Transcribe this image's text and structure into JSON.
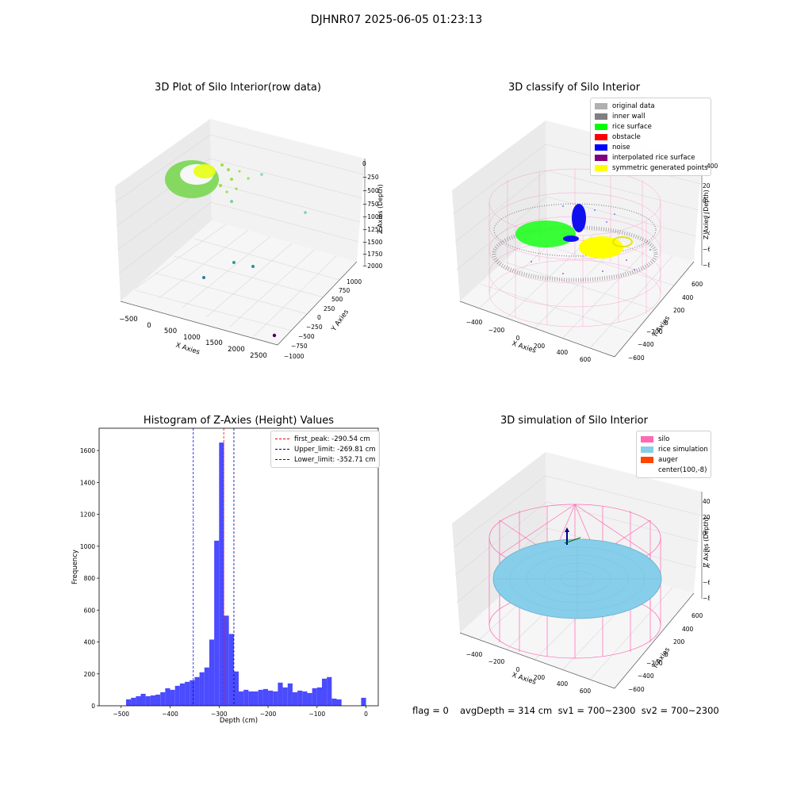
{
  "page": {
    "suptitle": "DJHNR07 2025-06-05 01:23:13"
  },
  "colors": {
    "silo": "#ff69b4",
    "rice_simulation": "#87ceeb",
    "auger": "#ff4500",
    "original": "#b0b0b0",
    "inner_wall": "#808080",
    "rice_surface": "#00ff00",
    "obstacle": "#ff0000",
    "noise": "#0000ff",
    "interpolated": "#800080",
    "symmetric": "#ffff00",
    "hist_bar": "#4b4bff"
  },
  "chart_data": [
    {
      "type": "scatter3d",
      "title": "3D Plot of Silo Interior(row data)",
      "xlabel": "X Axies",
      "ylabel": "Y Axies",
      "zlabel": "Z Axies (Depth)",
      "x_ticks": [
        "−500",
        "0",
        "500",
        "1000",
        "1500",
        "2000",
        "2500"
      ],
      "y_ticks": [
        "1000",
        "750",
        "500",
        "250",
        "0",
        "−250",
        "−500",
        "−750",
        "−1000"
      ],
      "z_ticks": [
        "0",
        "−250",
        "−500",
        "−750",
        "−1000",
        "−1250",
        "−1500",
        "−1750",
        "−2000"
      ],
      "xlim": [
        -600,
        2700
      ],
      "ylim": [
        -1050,
        1050
      ],
      "zlim": [
        -2100,
        100
      ]
    },
    {
      "type": "scatter3d",
      "title": "3D classify of Silo Interior",
      "xlabel": "X Axies",
      "ylabel": "Y Axies",
      "zlabel": "Z Axies (Depth)",
      "x_ticks": [
        "−400",
        "−200",
        "0",
        "200",
        "400",
        "600"
      ],
      "y_ticks": [
        "600",
        "400",
        "200",
        "0",
        "−200",
        "−400",
        "−600"
      ],
      "z_ticks": [
        "200",
        "0",
        "−200",
        "−400",
        "−600",
        "−800"
      ],
      "z_ticks_hidden": [
        "400"
      ],
      "legend": [
        {
          "label": "original data",
          "color": "#b0b0b0"
        },
        {
          "label": "inner wall",
          "color": "#808080"
        },
        {
          "label": "rice surface",
          "color": "#00ff00"
        },
        {
          "label": "obstacle",
          "color": "#ff0000"
        },
        {
          "label": "noise",
          "color": "#0000ff"
        },
        {
          "label": "interpolated rice surface",
          "color": "#800080"
        },
        {
          "label": "symmetric generated points",
          "color": "#ffff00"
        }
      ],
      "xlim": [
        -500,
        700
      ],
      "ylim": [
        -700,
        700
      ],
      "zlim": [
        -900,
        450
      ]
    },
    {
      "type": "bar",
      "title": "Histogram of Z-Axies (Height) Values",
      "xlabel": "Depth (cm)",
      "ylabel": "Frequency",
      "xlim": [
        -545,
        25
      ],
      "ylim": [
        0,
        1740
      ],
      "x_ticks": [
        -500,
        -400,
        -300,
        -200,
        -100,
        0
      ],
      "y_ticks": [
        0,
        200,
        400,
        600,
        800,
        1000,
        1200,
        1400,
        1600
      ],
      "bin_width": 10,
      "bin_starts": [
        -490,
        -480,
        -470,
        -460,
        -450,
        -440,
        -430,
        -420,
        -410,
        -400,
        -390,
        -380,
        -370,
        -360,
        -350,
        -340,
        -330,
        -320,
        -310,
        -300,
        -290,
        -280,
        -270,
        -260,
        -250,
        -240,
        -230,
        -220,
        -210,
        -200,
        -190,
        -180,
        -170,
        -160,
        -150,
        -140,
        -130,
        -120,
        -110,
        -100,
        -90,
        -80,
        -70,
        -60,
        -50,
        -40,
        -30,
        -20,
        -10,
        0
      ],
      "values": [
        40,
        50,
        60,
        75,
        60,
        65,
        70,
        85,
        110,
        100,
        125,
        140,
        150,
        160,
        180,
        210,
        240,
        415,
        1035,
        1650,
        565,
        450,
        215,
        90,
        100,
        90,
        90,
        100,
        105,
        95,
        90,
        145,
        115,
        140,
        85,
        95,
        90,
        80,
        110,
        115,
        170,
        180,
        45,
        40,
        0,
        0,
        0,
        0,
        50,
        0
      ],
      "lines": [
        {
          "label": "first_peak: -290.54 cm",
          "value": -290.54,
          "color": "#ff0000"
        },
        {
          "label": "Upper_limit: -269.81 cm",
          "value": -269.81,
          "color": "#00008b"
        },
        {
          "label": "Lower_limit: -352.71 cm",
          "value": -352.71,
          "color": "#0000ff"
        }
      ]
    },
    {
      "type": "surface3d",
      "title": "3D simulation of Silo Interior",
      "xlabel": "X Axies",
      "ylabel": "Y Axies",
      "zlabel": "Z Axies (Depth)",
      "x_ticks": [
        "−400",
        "−200",
        "0",
        "200",
        "400",
        "600"
      ],
      "y_ticks": [
        "600",
        "400",
        "200",
        "0",
        "−200",
        "−400",
        "−600"
      ],
      "z_ticks": [
        "400",
        "200",
        "0",
        "−200",
        "−400",
        "−600",
        "−800"
      ],
      "legend": [
        {
          "label": "silo",
          "color": "#ff69b4"
        },
        {
          "label": "rice simulation",
          "color": "#87ceeb"
        },
        {
          "label": "auger",
          "color": "#ff4500"
        },
        {
          "label": "center(100,-8)",
          "color": ""
        }
      ],
      "xlim": [
        -500,
        700
      ],
      "ylim": [
        -700,
        700
      ],
      "zlim": [
        -900,
        450
      ]
    }
  ],
  "footer": {
    "flag": "flag = 0",
    "avg": "avgDepth = 314 cm  sv1 = 700~2300  sv2 = 700~2300"
  }
}
